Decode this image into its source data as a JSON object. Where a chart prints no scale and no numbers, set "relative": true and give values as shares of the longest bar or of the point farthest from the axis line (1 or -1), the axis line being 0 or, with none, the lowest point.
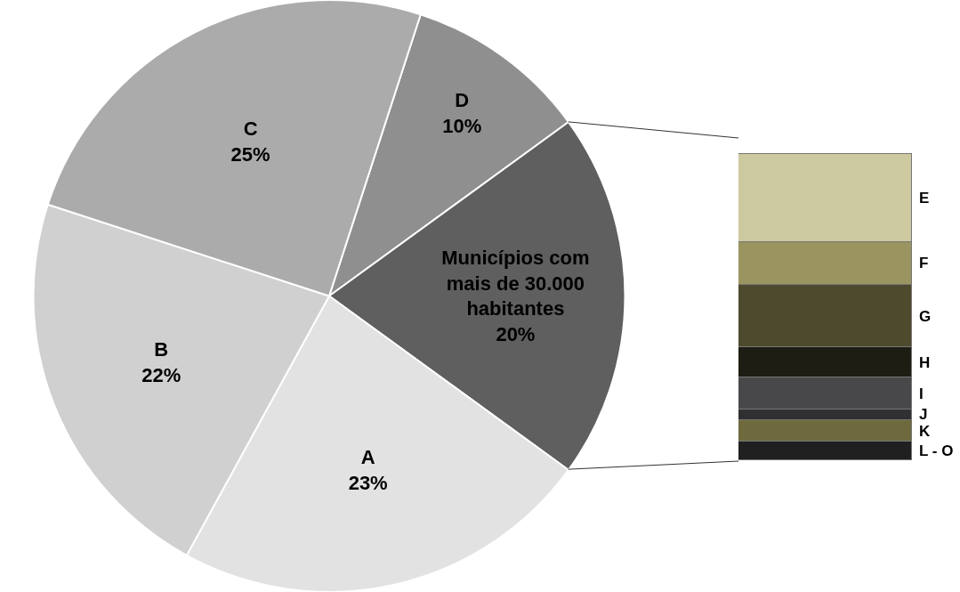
{
  "chart_data": [
    {
      "type": "pie",
      "categories": [
        "D",
        "Municípios com mais de 30.000 habitantes",
        "A",
        "B",
        "C"
      ],
      "values": [
        10,
        20,
        23,
        22,
        25
      ],
      "value_labels": [
        "10%",
        "20%",
        "23%",
        "22%",
        "25%"
      ],
      "colors": [
        "#8f8f8f",
        "#5f5f5f",
        "#e2e2e2",
        "#d0d0d0",
        "#ababab"
      ]
    },
    {
      "type": "bar",
      "stacked": true,
      "relative": true,
      "categories": [
        null
      ],
      "series": [
        {
          "name": "L - O",
          "color": "#202020",
          "values": [
            0.061
          ]
        },
        {
          "name": "K",
          "color": "#6e6a3e",
          "values": [
            0.069
          ]
        },
        {
          "name": "J",
          "color": "#303032",
          "values": [
            0.037
          ]
        },
        {
          "name": "I",
          "color": "#48484a",
          "values": [
            0.102
          ]
        },
        {
          "name": "H",
          "color": "#1e1d14",
          "values": [
            0.099
          ]
        },
        {
          "name": "G",
          "color": "#4e4a2e",
          "values": [
            0.206
          ]
        },
        {
          "name": "F",
          "color": "#9a9460",
          "values": [
            0.139
          ]
        },
        {
          "name": "E",
          "color": "#cdc9a0",
          "values": [
            0.287
          ]
        }
      ]
    }
  ]
}
